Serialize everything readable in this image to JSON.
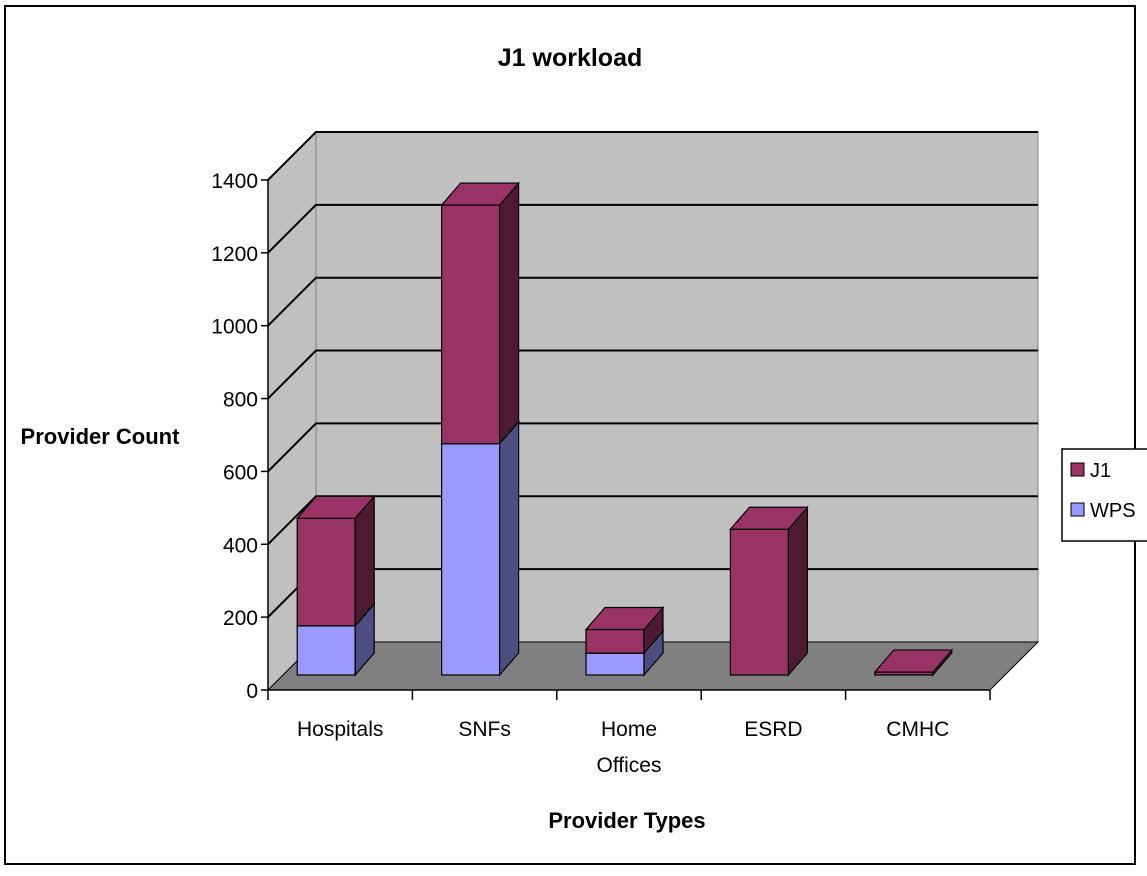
{
  "chart_data": {
    "type": "bar",
    "stacked": true,
    "three_d": true,
    "title": "J1 workload",
    "xlabel": "Provider Types",
    "ylabel": "Provider Count",
    "categories": [
      [
        "Hospitals"
      ],
      [
        "SNFs"
      ],
      [
        "Home",
        "Offices"
      ],
      [
        "ESRD"
      ],
      [
        "CMHC"
      ]
    ],
    "series": [
      {
        "name": "WPS",
        "values": [
          135,
          635,
          60,
          0,
          0
        ],
        "color": "#9999ff"
      },
      {
        "name": "J1",
        "values": [
          295,
          655,
          65,
          400,
          8
        ],
        "color": "#993366"
      }
    ],
    "ylim": [
      0,
      1400
    ],
    "yticks": [
      "0",
      "200",
      "400",
      "600",
      "800",
      "1000",
      "1200",
      "1400"
    ],
    "grid": true,
    "legend_position": "right",
    "legend_order": [
      "J1",
      "WPS"
    ],
    "colors": {
      "wall": "#c0c0c0",
      "floor": "#808080"
    }
  }
}
